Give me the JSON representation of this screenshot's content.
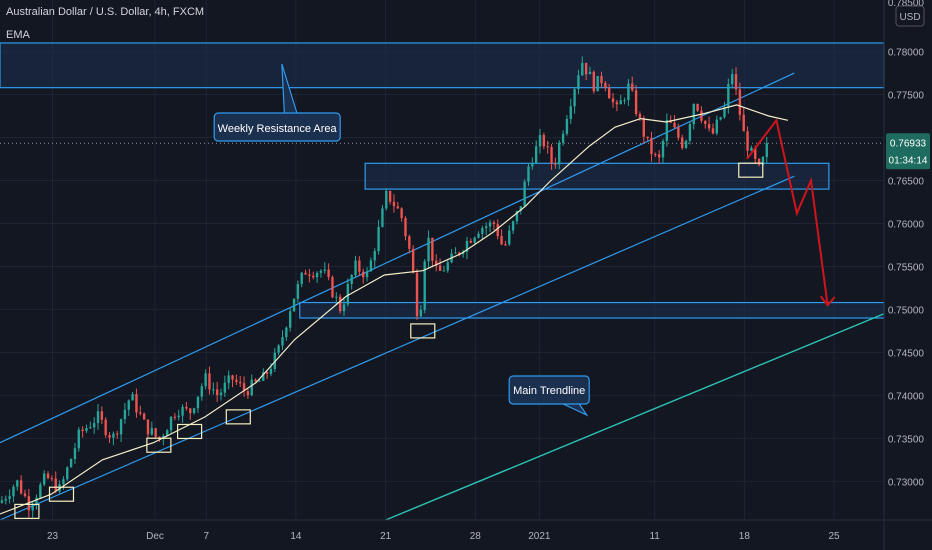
{
  "header": {
    "symbol_line": "Australian Dollar / U.S. Dollar, 4h, FXCM",
    "indicator": "EMA",
    "currency_badge": "USD"
  },
  "colors": {
    "background": "#131722",
    "grid": "#1e2433",
    "candle_up": "#26a69a",
    "candle_down": "#ef5350",
    "ema": "#f3edc8",
    "zone_border": "#2f9bf0",
    "zone_fill": "#1b2f4f",
    "channel": "#2f9bf0",
    "main_trendline": "#2cc3b5",
    "projection": "#d0141c",
    "box": "#f5f0c0",
    "axis_text": "#b2b5be"
  },
  "chart_data": {
    "type": "candlestick",
    "title": "Australian Dollar / U.S. Dollar, 4h, FXCM",
    "xlabel": "",
    "ylabel": "",
    "ylim": [
      0.7255,
      0.786
    ],
    "y_ticks": [
      "0.73000",
      "0.73500",
      "0.74000",
      "0.74500",
      "0.75000",
      "0.75500",
      "0.76000",
      "0.76500",
      "0.77000",
      "0.77500",
      "0.78000"
    ],
    "y_top_partial": "0.78500",
    "x_ticks": [
      {
        "label": "23",
        "x": 4.1
      },
      {
        "label": "Dec",
        "x": 12.1
      },
      {
        "label": "7",
        "x": 16.1
      },
      {
        "label": "14",
        "x": 23.1
      },
      {
        "label": "21",
        "x": 30.1
      },
      {
        "label": "28",
        "x": 37.1
      },
      {
        "label": "2021",
        "x": 42.1
      },
      {
        "label": "11",
        "x": 51.1
      },
      {
        "label": "18",
        "x": 58.1
      },
      {
        "label": "25",
        "x": 65.1
      }
    ],
    "x_range": [
      0,
      69
    ],
    "last_price": {
      "value": 0.76933,
      "label": "0.76933",
      "countdown": "01:34:14"
    },
    "ohlc_anchors": [
      [
        0,
        0.7275
      ],
      [
        1.3,
        0.73
      ],
      [
        2.3,
        0.7272
      ],
      [
        3.6,
        0.7305
      ],
      [
        4.7,
        0.729
      ],
      [
        6.2,
        0.7355
      ],
      [
        7.6,
        0.7375
      ],
      [
        8.8,
        0.735
      ],
      [
        10.2,
        0.74
      ],
      [
        11.3,
        0.7365
      ],
      [
        12.4,
        0.7348
      ],
      [
        13.8,
        0.7385
      ],
      [
        14.8,
        0.738
      ],
      [
        16.0,
        0.742
      ],
      [
        17.0,
        0.74
      ],
      [
        18.1,
        0.742
      ],
      [
        19.1,
        0.7405
      ],
      [
        20.6,
        0.742
      ],
      [
        21.7,
        0.745
      ],
      [
        22.8,
        0.751
      ],
      [
        23.8,
        0.7545
      ],
      [
        25.2,
        0.7545
      ],
      [
        26.6,
        0.75
      ],
      [
        27.7,
        0.755
      ],
      [
        28.7,
        0.754
      ],
      [
        29.6,
        0.7595
      ],
      [
        30.2,
        0.7635
      ],
      [
        31.3,
        0.761
      ],
      [
        32.1,
        0.756
      ],
      [
        32.7,
        0.748
      ],
      [
        33.3,
        0.759
      ],
      [
        34.1,
        0.754
      ],
      [
        35.1,
        0.7555
      ],
      [
        36.2,
        0.7575
      ],
      [
        37.4,
        0.7595
      ],
      [
        38.6,
        0.76
      ],
      [
        39.3,
        0.757
      ],
      [
        40.6,
        0.762
      ],
      [
        41.3,
        0.767
      ],
      [
        42.3,
        0.77
      ],
      [
        43.2,
        0.7665
      ],
      [
        44.1,
        0.772
      ],
      [
        45.4,
        0.779
      ],
      [
        46.4,
        0.776
      ],
      [
        47.1,
        0.777
      ],
      [
        48.1,
        0.773
      ],
      [
        49.1,
        0.776
      ],
      [
        49.9,
        0.772
      ],
      [
        50.6,
        0.769
      ],
      [
        51.4,
        0.767
      ],
      [
        52.1,
        0.772
      ],
      [
        53.4,
        0.769
      ],
      [
        54.2,
        0.7745
      ],
      [
        55.5,
        0.77
      ],
      [
        56.6,
        0.7735
      ],
      [
        57.1,
        0.778
      ],
      [
        58.1,
        0.77
      ],
      [
        58.8,
        0.7675
      ],
      [
        59.3,
        0.766
      ],
      [
        59.8,
        0.7685
      ],
      [
        60.1,
        0.7693
      ]
    ],
    "ema_points": [
      [
        0,
        0.7262
      ],
      [
        4,
        0.7285
      ],
      [
        8,
        0.7325
      ],
      [
        12,
        0.7345
      ],
      [
        16,
        0.7375
      ],
      [
        20,
        0.7415
      ],
      [
        23,
        0.7465
      ],
      [
        27,
        0.7515
      ],
      [
        30,
        0.754
      ],
      [
        33,
        0.7545
      ],
      [
        36,
        0.7565
      ],
      [
        38.5,
        0.759
      ],
      [
        41,
        0.762
      ],
      [
        43,
        0.765
      ],
      [
        46,
        0.769
      ],
      [
        48,
        0.7712
      ],
      [
        50,
        0.7722
      ],
      [
        52,
        0.7718
      ],
      [
        55,
        0.7728
      ],
      [
        57.5,
        0.7738
      ],
      [
        60,
        0.7725
      ],
      [
        61.5,
        0.772
      ]
    ]
  },
  "annotations": {
    "weekly_resistance_label": "Weekly Resistance Area",
    "main_trendline_label": "Main Trendline",
    "zones": [
      {
        "name": "weekly-resistance-zone",
        "x1": 0,
        "x2": 69,
        "y1": 0.7758,
        "y2": 0.781
      },
      {
        "name": "support-zone-upper",
        "x1": 28.5,
        "x2": 64.7,
        "y1": 0.764,
        "y2": 0.767
      },
      {
        "name": "support-zone-lower",
        "x1": 23.4,
        "x2": 69,
        "y1": 0.749,
        "y2": 0.7508
      }
    ],
    "channel_upper": [
      [
        0,
        0.7345
      ],
      [
        62,
        0.7775
      ]
    ],
    "channel_lower": [
      [
        0,
        0.7255
      ],
      [
        62,
        0.7655
      ]
    ],
    "main_trendline": [
      [
        30.1,
        0.7255
      ],
      [
        69,
        0.7495
      ]
    ],
    "projection": [
      [
        58.3,
        0.7675
      ],
      [
        60.6,
        0.772
      ],
      [
        62.2,
        0.7612
      ],
      [
        63.3,
        0.765
      ],
      [
        64.6,
        0.7505
      ]
    ],
    "swing_boxes": [
      [
        2.1,
        0.7265
      ],
      [
        4.8,
        0.7285
      ],
      [
        12.4,
        0.7342
      ],
      [
        14.8,
        0.7358
      ],
      [
        18.6,
        0.7375
      ],
      [
        33.0,
        0.7475
      ],
      [
        58.6,
        0.7662
      ]
    ]
  }
}
